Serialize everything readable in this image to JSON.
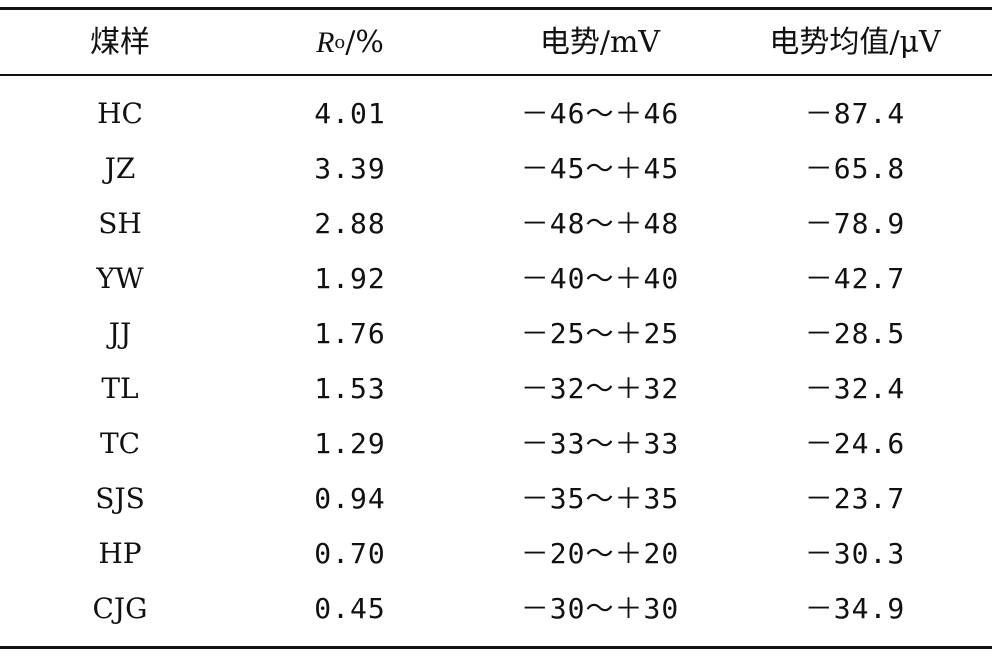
{
  "table": {
    "headers": {
      "col1": "煤样",
      "col2_main": "R",
      "col2_sub": "o",
      "col2_suffix": "/%",
      "col3": "电势/mV",
      "col4": "电势均值/μV"
    },
    "rows": [
      {
        "sample": "HC",
        "ro": "4.01",
        "range": "－46～＋46",
        "mean": "－87.4"
      },
      {
        "sample": "JZ",
        "ro": "3.39",
        "range": "－45～＋45",
        "mean": "－65.8"
      },
      {
        "sample": "SH",
        "ro": "2.88",
        "range": "－48～＋48",
        "mean": "－78.9"
      },
      {
        "sample": "YW",
        "ro": "1.92",
        "range": "－40～＋40",
        "mean": "－42.7"
      },
      {
        "sample": "JJ",
        "ro": "1.76",
        "range": "－25～＋25",
        "mean": "－28.5"
      },
      {
        "sample": "TL",
        "ro": "1.53",
        "range": "－32～＋32",
        "mean": "－32.4"
      },
      {
        "sample": "TC",
        "ro": "1.29",
        "range": "－33～＋33",
        "mean": "－24.6"
      },
      {
        "sample": "SJS",
        "ro": "0.94",
        "range": "－35～＋35",
        "mean": "－23.7"
      },
      {
        "sample": "HP",
        "ro": "0.70",
        "range": "－20～＋20",
        "mean": "－30.3"
      },
      {
        "sample": "CJG",
        "ro": "0.45",
        "range": "－30～＋30",
        "mean": "－34.9"
      }
    ]
  }
}
